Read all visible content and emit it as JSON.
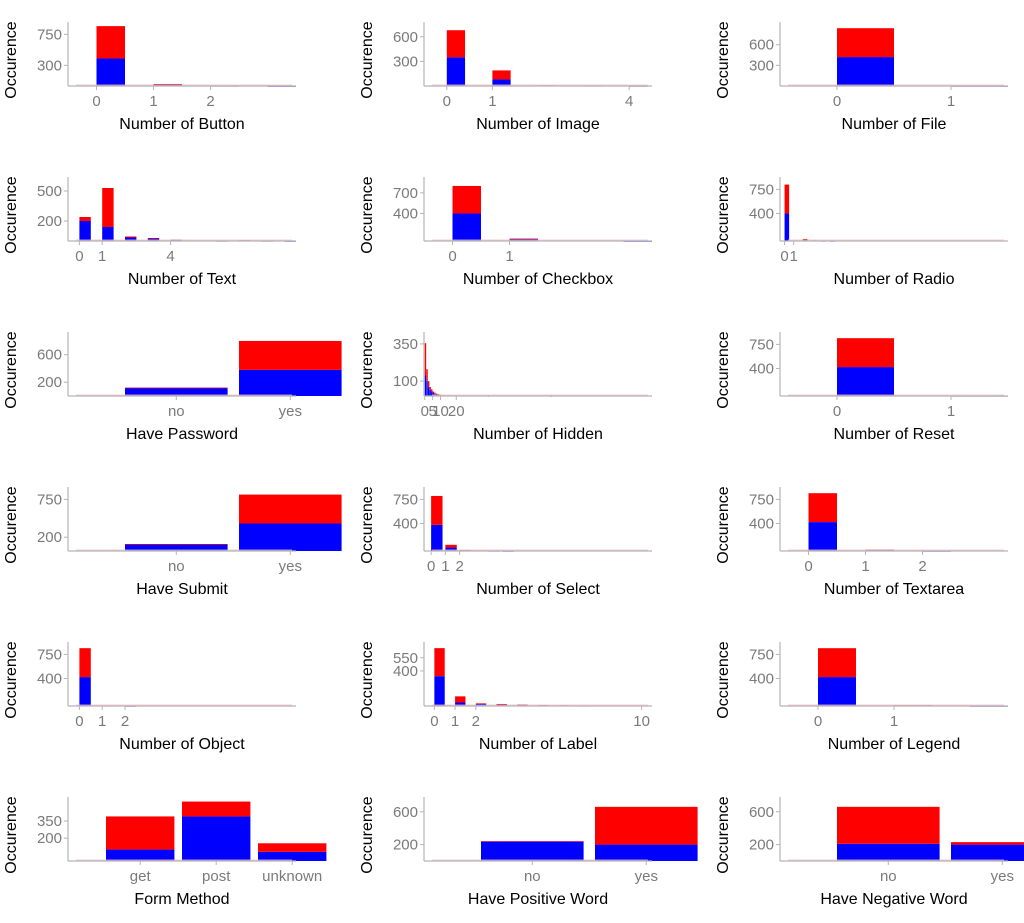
{
  "colors": {
    "spam": "#ff0000",
    "ham": "#0000ff",
    "axis": "#b5b5b5",
    "tick_text": "#7a7a7a"
  },
  "chart_data": [
    {
      "type": "bar",
      "xlabel": "Number of Button",
      "ylabel": "Occurence",
      "yticks": [
        300,
        750
      ],
      "ylim": [
        0,
        930
      ],
      "xlim": [
        -0.5,
        3.5
      ],
      "xticks": [
        0,
        1,
        2
      ],
      "bar_width": 0.5,
      "bars": [
        {
          "x": 0,
          "blue": 400,
          "red": 470
        },
        {
          "x": 1,
          "blue": 25,
          "red": 3
        },
        {
          "x": 2,
          "blue": 3,
          "red": 1
        },
        {
          "x": 3,
          "blue": 1,
          "red": 1
        }
      ]
    },
    {
      "type": "bar",
      "xlabel": "Number of Image",
      "ylabel": "Occurence",
      "yticks": [
        300,
        600
      ],
      "ylim": [
        0,
        780
      ],
      "xlim": [
        -0.5,
        4.5
      ],
      "xticks": [
        0,
        1,
        4
      ],
      "bar_width": 0.4,
      "bars": [
        {
          "x": 0,
          "blue": 350,
          "red": 330
        },
        {
          "x": 1,
          "blue": 80,
          "red": 110
        },
        {
          "x": 2,
          "blue": 6,
          "red": 2
        },
        {
          "x": 3,
          "blue": 3,
          "red": 1
        },
        {
          "x": 4,
          "blue": 2,
          "red": 1
        }
      ]
    },
    {
      "type": "bar",
      "xlabel": "Number of File",
      "ylabel": "Occurence",
      "yticks": [
        300,
        600
      ],
      "ylim": [
        0,
        930
      ],
      "xlim": [
        -0.5,
        1.5
      ],
      "xticks": [
        0,
        1
      ],
      "bar_width": 0.5,
      "bars": [
        {
          "x": 0,
          "blue": 420,
          "red": 420
        },
        {
          "x": 1,
          "blue": 2,
          "red": 1
        }
      ]
    },
    {
      "type": "bar",
      "xlabel": "Number of Text",
      "ylabel": "Occurence",
      "yticks": [
        200,
        500
      ],
      "ylim": [
        0,
        640
      ],
      "xlim": [
        -0.5,
        9.5
      ],
      "xticks": [
        0,
        1,
        4
      ],
      "bar_width": 0.5,
      "bars": [
        {
          "x": 0,
          "blue": 200,
          "red": 40
        },
        {
          "x": 1,
          "blue": 140,
          "red": 390
        },
        {
          "x": 2,
          "blue": 35,
          "red": 10
        },
        {
          "x": 3,
          "blue": 25,
          "red": 5
        },
        {
          "x": 4,
          "blue": 10,
          "red": 5
        },
        {
          "x": 5,
          "blue": 3,
          "red": 2
        },
        {
          "x": 6,
          "blue": 2,
          "red": 1
        },
        {
          "x": 7,
          "blue": 6,
          "red": 2
        },
        {
          "x": 8,
          "blue": 2,
          "red": 1
        },
        {
          "x": 9,
          "blue": 1,
          "red": 1
        }
      ]
    },
    {
      "type": "bar",
      "xlabel": "Number of Checkbox",
      "ylabel": "Occurence",
      "yticks": [
        400,
        700
      ],
      "ylim": [
        0,
        930
      ],
      "xlim": [
        -0.5,
        3.5
      ],
      "xticks": [
        0,
        1
      ],
      "bar_width": 0.5,
      "bars": [
        {
          "x": 0,
          "blue": 400,
          "red": 400
        },
        {
          "x": 1,
          "blue": 30,
          "red": 5
        },
        {
          "x": 2,
          "blue": 5,
          "red": 3
        },
        {
          "x": 3,
          "blue": 1,
          "red": 1
        }
      ]
    },
    {
      "type": "bar",
      "xlabel": "Number of Radio",
      "ylabel": "Occurence",
      "yticks": [
        400,
        750
      ],
      "ylim": [
        0,
        930
      ],
      "xlim": [
        -0.5,
        24.5
      ],
      "xticks": [
        0,
        1
      ],
      "bar_width": 0.5,
      "bars": [
        {
          "x": 0,
          "blue": 400,
          "red": 420
        },
        {
          "x": 1,
          "blue": 5,
          "red": 3
        },
        {
          "x": 2,
          "blue": 15,
          "red": 15
        },
        {
          "x": 3,
          "blue": 5,
          "red": 5
        },
        {
          "x": 4,
          "blue": 3,
          "red": 3
        },
        {
          "x": 5,
          "blue": 2,
          "red": 1
        }
      ]
    },
    {
      "type": "bar",
      "xlabel": "Have Password",
      "ylabel": "Occurence",
      "yticks": [
        200,
        600
      ],
      "ylim": [
        0,
        930
      ],
      "xlim": [
        -0.5,
        1.5
      ],
      "xticks": [
        0,
        1
      ],
      "xticklabels": [
        "no",
        "yes"
      ],
      "bar_width": 0.9,
      "bars": [
        {
          "x": 0,
          "blue": 120,
          "red": 0
        },
        {
          "x": 1,
          "blue": 380,
          "red": 420
        }
      ]
    },
    {
      "type": "bar",
      "xlabel": "Number of Hidden",
      "ylabel": "Occurence",
      "yticks": [
        100,
        350
      ],
      "ylim": [
        0,
        430
      ],
      "xlim": [
        -0.5,
        144.5
      ],
      "xticks": [
        0,
        5,
        10,
        20
      ],
      "bar_width": 0.5,
      "bars": [
        {
          "x": 0,
          "blue": 140,
          "red": 215
        },
        {
          "x": 1,
          "blue": 100,
          "red": 80
        },
        {
          "x": 2,
          "blue": 60,
          "red": 40
        },
        {
          "x": 3,
          "blue": 40,
          "red": 20
        },
        {
          "x": 4,
          "blue": 30,
          "red": 15
        },
        {
          "x": 5,
          "blue": 20,
          "red": 10
        },
        {
          "x": 6,
          "blue": 15,
          "red": 8
        },
        {
          "x": 7,
          "blue": 10,
          "red": 6
        },
        {
          "x": 8,
          "blue": 8,
          "red": 5
        },
        {
          "x": 9,
          "blue": 6,
          "red": 4
        },
        {
          "x": 10,
          "blue": 5,
          "red": 3
        },
        {
          "x": 12,
          "blue": 4,
          "red": 2
        },
        {
          "x": 15,
          "blue": 3,
          "red": 2
        },
        {
          "x": 20,
          "blue": 2,
          "red": 1
        },
        {
          "x": 40,
          "blue": 1,
          "red": 1
        },
        {
          "x": 80,
          "blue": 1,
          "red": 1
        }
      ]
    },
    {
      "type": "bar",
      "xlabel": "Number of Reset",
      "ylabel": "Occurence",
      "yticks": [
        400,
        750
      ],
      "ylim": [
        0,
        930
      ],
      "xlim": [
        -0.5,
        1.5
      ],
      "xticks": [
        0,
        1
      ],
      "bar_width": 0.5,
      "bars": [
        {
          "x": 0,
          "blue": 420,
          "red": 420
        },
        {
          "x": 1,
          "blue": 3,
          "red": 1
        }
      ]
    },
    {
      "type": "bar",
      "xlabel": "Have Submit",
      "ylabel": "Occurence",
      "yticks": [
        200,
        750
      ],
      "ylim": [
        0,
        930
      ],
      "xlim": [
        -0.5,
        1.5
      ],
      "xticks": [
        0,
        1
      ],
      "xticklabels": [
        "no",
        "yes"
      ],
      "bar_width": 0.9,
      "bars": [
        {
          "x": 0,
          "blue": 100,
          "red": 0
        },
        {
          "x": 1,
          "blue": 400,
          "red": 420
        }
      ]
    },
    {
      "type": "bar",
      "xlabel": "Number of Select",
      "ylabel": "Occurence",
      "yticks": [
        400,
        750
      ],
      "ylim": [
        0,
        930
      ],
      "xlim": [
        -0.5,
        15.5
      ],
      "xticks": [
        0,
        1,
        2
      ],
      "bar_width": 0.8,
      "bars": [
        {
          "x": 0,
          "blue": 380,
          "red": 420
        },
        {
          "x": 1,
          "blue": 50,
          "red": 40
        },
        {
          "x": 2,
          "blue": 10,
          "red": 5
        },
        {
          "x": 3,
          "blue": 5,
          "red": 3
        },
        {
          "x": 4,
          "blue": 3,
          "red": 2
        },
        {
          "x": 5,
          "blue": 2,
          "red": 1
        }
      ]
    },
    {
      "type": "bar",
      "xlabel": "Number of Textarea",
      "ylabel": "Occurence",
      "yticks": [
        400,
        750
      ],
      "ylim": [
        0,
        930
      ],
      "xlim": [
        -0.5,
        3.5
      ],
      "xticks": [
        0,
        1,
        2
      ],
      "bar_width": 0.5,
      "bars": [
        {
          "x": 0,
          "blue": 420,
          "red": 420
        },
        {
          "x": 1,
          "blue": 20,
          "red": 2
        },
        {
          "x": 2,
          "blue": 2,
          "red": 1
        }
      ]
    },
    {
      "type": "bar",
      "xlabel": "Number of Object",
      "ylabel": "Occurence",
      "yticks": [
        400,
        750
      ],
      "ylim": [
        0,
        930
      ],
      "xlim": [
        -0.5,
        9.5
      ],
      "xticks": [
        0,
        1,
        2
      ],
      "bar_width": 0.5,
      "bars": [
        {
          "x": 0,
          "blue": 420,
          "red": 420
        },
        {
          "x": 1,
          "blue": 4,
          "red": 2
        },
        {
          "x": 2,
          "blue": 2,
          "red": 1
        }
      ]
    },
    {
      "type": "bar",
      "xlabel": "Number of Label",
      "ylabel": "Occurence",
      "yticks": [
        400,
        550
      ],
      "ylim": [
        0,
        730
      ],
      "xlim": [
        -0.5,
        10.5
      ],
      "xticks": [
        0,
        1,
        2,
        10
      ],
      "bar_width": 0.5,
      "bars": [
        {
          "x": 0,
          "blue": 340,
          "red": 320
        },
        {
          "x": 1,
          "blue": 40,
          "red": 70
        },
        {
          "x": 2,
          "blue": 25,
          "red": 5
        },
        {
          "x": 3,
          "blue": 20,
          "red": 3
        },
        {
          "x": 4,
          "blue": 15,
          "red": 3
        },
        {
          "x": 5,
          "blue": 8,
          "red": 2
        },
        {
          "x": 6,
          "blue": 6,
          "red": 2
        },
        {
          "x": 7,
          "blue": 3,
          "red": 1
        }
      ]
    },
    {
      "type": "bar",
      "xlabel": "Number of Legend",
      "ylabel": "Occurence",
      "yticks": [
        400,
        750
      ],
      "ylim": [
        0,
        930
      ],
      "xlim": [
        -0.5,
        2.5
      ],
      "xticks": [
        0,
        1
      ],
      "bar_width": 0.5,
      "bars": [
        {
          "x": 0,
          "blue": 420,
          "red": 420
        },
        {
          "x": 1,
          "blue": 10,
          "red": 2
        },
        {
          "x": 2,
          "blue": 2,
          "red": 1
        }
      ]
    },
    {
      "type": "bar",
      "xlabel": "Form Method",
      "ylabel": "Occurence",
      "yticks": [
        200,
        350
      ],
      "ylim": [
        0,
        560
      ],
      "xlim": [
        -0.5,
        2.5
      ],
      "xticks": [
        0,
        1,
        2
      ],
      "xticklabels": [
        "get",
        "post",
        "unknown"
      ],
      "bar_width": 0.9,
      "bars": [
        {
          "x": 0,
          "blue": 100,
          "red": 290
        },
        {
          "x": 1,
          "blue": 390,
          "red": 130
        },
        {
          "x": 2,
          "blue": 80,
          "red": 75
        }
      ]
    },
    {
      "type": "bar",
      "xlabel": "Have Positive Word",
      "ylabel": "Occurence",
      "yticks": [
        200,
        600
      ],
      "ylim": [
        0,
        780
      ],
      "xlim": [
        -0.5,
        1.5
      ],
      "xticks": [
        0,
        1
      ],
      "xticklabels": [
        "no",
        "yes"
      ],
      "bar_width": 0.9,
      "bars": [
        {
          "x": 0,
          "blue": 240,
          "red": 0
        },
        {
          "x": 1,
          "blue": 200,
          "red": 460
        }
      ]
    },
    {
      "type": "bar",
      "xlabel": "Have Negative Word",
      "ylabel": "Occurence",
      "yticks": [
        200,
        600
      ],
      "ylim": [
        0,
        780
      ],
      "xlim": [
        -0.5,
        1.5
      ],
      "xticks": [
        0,
        1
      ],
      "xticklabels": [
        "no",
        "yes"
      ],
      "bar_width": 0.9,
      "bars": [
        {
          "x": 0,
          "blue": 210,
          "red": 450
        },
        {
          "x": 1,
          "blue": 200,
          "red": 30
        }
      ]
    }
  ]
}
